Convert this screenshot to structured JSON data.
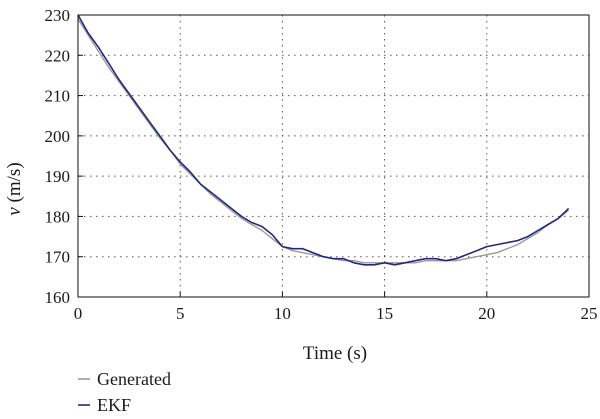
{
  "chart_data": {
    "type": "line",
    "title": "",
    "xlabel": "Time (s)",
    "ylabel_var": "v",
    "ylabel_unit": " (m/s)",
    "xlim": [
      0,
      25
    ],
    "ylim": [
      160,
      230
    ],
    "xticks": [
      0,
      5,
      10,
      15,
      20,
      25
    ],
    "yticks": [
      160,
      170,
      180,
      190,
      200,
      210,
      220,
      230
    ],
    "grid": true,
    "legend_position": "bottom-left",
    "series": [
      {
        "name": "Generated",
        "color": "#9a9a9a",
        "x": [
          0,
          0.5,
          1,
          1.5,
          2,
          2.5,
          3,
          3.5,
          4,
          4.5,
          5,
          5.5,
          6,
          6.5,
          7,
          7.5,
          8,
          8.5,
          9,
          9.5,
          10,
          10.5,
          11,
          11.5,
          12,
          12.5,
          13,
          13.5,
          14,
          14.5,
          15,
          15.5,
          16,
          16.5,
          17,
          17.5,
          18,
          18.5,
          19,
          19.5,
          20,
          20.5,
          21,
          21.5,
          22,
          22.5,
          23,
          23.5,
          24
        ],
        "y": [
          229,
          225,
          221,
          217,
          213.5,
          210,
          206.5,
          203,
          199.5,
          196.5,
          193,
          190.5,
          188,
          185.5,
          183.5,
          181.5,
          179.5,
          178,
          176.5,
          174.5,
          172.5,
          171.5,
          171,
          170.5,
          170,
          169.5,
          169,
          169,
          168.5,
          168.5,
          168.5,
          168.5,
          168.5,
          168.5,
          169,
          169,
          169,
          169,
          169.5,
          170,
          170.5,
          171,
          172,
          173,
          174.5,
          176,
          178,
          179.5,
          181.5
        ]
      },
      {
        "name": "EKF",
        "color": "#1f2a78",
        "x": [
          0,
          0.5,
          1,
          1.5,
          2,
          2.5,
          3,
          3.5,
          4,
          4.5,
          5,
          5.5,
          6,
          6.5,
          7,
          7.5,
          8,
          8.5,
          9,
          9.5,
          10,
          10.5,
          11,
          11.5,
          12,
          12.5,
          13,
          13.5,
          14,
          14.5,
          15,
          15.5,
          16,
          16.5,
          17,
          17.5,
          18,
          18.5,
          19,
          19.5,
          20,
          20.5,
          21,
          21.5,
          22,
          22.5,
          23,
          23.5,
          24
        ],
        "y": [
          230,
          225.5,
          222,
          218,
          214,
          210.5,
          207,
          203.5,
          200,
          196.5,
          193.5,
          191,
          188,
          186,
          184,
          182,
          180,
          178.5,
          177.5,
          175.5,
          172.5,
          172,
          172,
          171,
          170,
          169.5,
          169.5,
          168.5,
          168,
          168,
          168.5,
          168,
          168.5,
          169,
          169.5,
          169.5,
          169,
          169.5,
          170.5,
          171.5,
          172.5,
          173,
          173.5,
          174,
          175,
          176.5,
          178,
          179.5,
          182
        ]
      }
    ]
  }
}
